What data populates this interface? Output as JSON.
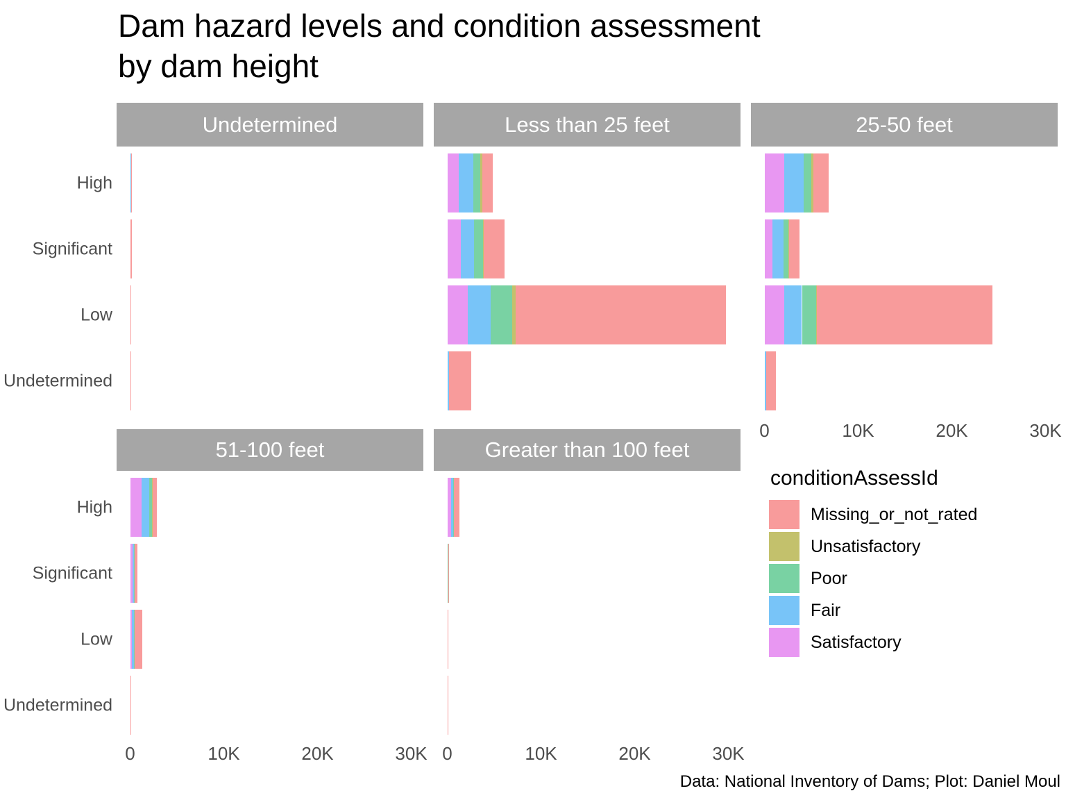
{
  "title": {
    "line1": "Dam hazard levels and condition assessment",
    "line2": "by dam height"
  },
  "caption": "Data: National Inventory of Dams; Plot: Daniel Moul",
  "legend": {
    "title": "conditionAssessId",
    "items": [
      {
        "label": "Missing_or_not_rated",
        "series": "Missing_or_not_rated",
        "color": "#F89B9B"
      },
      {
        "label": "Unsatisfactory",
        "series": "Unsatisfactory",
        "color": "#C3C16C"
      },
      {
        "label": "Poor",
        "series": "Poor",
        "color": "#79D2A3"
      },
      {
        "label": "Fair",
        "series": "Fair",
        "color": "#78C4F8"
      },
      {
        "label": "Satisfactory",
        "series": "Satisfactory",
        "color": "#E897F2"
      }
    ]
  },
  "axes": {
    "y_categories": [
      "High",
      "Significant",
      "Low",
      "Undetermined"
    ],
    "x_ticks": [
      {
        "label": "0",
        "value": 0
      },
      {
        "label": "10K",
        "value": 10000
      },
      {
        "label": "20K",
        "value": 20000
      },
      {
        "label": "30K",
        "value": 30000
      }
    ]
  },
  "chart_data": {
    "type": "bar",
    "orientation": "horizontal",
    "stacked": true,
    "facet_variable": "dam height",
    "categories": [
      "High",
      "Significant",
      "Low",
      "Undetermined"
    ],
    "stack_order_left_to_right": [
      "Satisfactory",
      "Fair",
      "Poor",
      "Unsatisfactory",
      "Missing_or_not_rated"
    ],
    "xlim": [
      0,
      31500
    ],
    "grid": "off",
    "legend_position": "right-middle",
    "facets": [
      {
        "label": "Undetermined",
        "bars": [
          {
            "category": "High",
            "Satisfactory": 30,
            "Fair": 100,
            "Poor": 10,
            "Unsatisfactory": 0,
            "Missing_or_not_rated": 60
          },
          {
            "category": "Significant",
            "Satisfactory": 10,
            "Fair": 10,
            "Poor": 0,
            "Unsatisfactory": 0,
            "Missing_or_not_rated": 140
          },
          {
            "category": "Low",
            "Satisfactory": 0,
            "Fair": 10,
            "Poor": 0,
            "Unsatisfactory": 0,
            "Missing_or_not_rated": 10
          },
          {
            "category": "Undetermined",
            "Satisfactory": 0,
            "Fair": 0,
            "Poor": 0,
            "Unsatisfactory": 0,
            "Missing_or_not_rated": 10
          }
        ]
      },
      {
        "label": "Less than 25 feet",
        "bars": [
          {
            "category": "High",
            "Satisfactory": 1200,
            "Fair": 1600,
            "Poor": 750,
            "Unsatisfactory": 200,
            "Missing_or_not_rated": 1100
          },
          {
            "category": "Significant",
            "Satisfactory": 1450,
            "Fair": 1400,
            "Poor": 1000,
            "Unsatisfactory": 50,
            "Missing_or_not_rated": 2200
          },
          {
            "category": "Low",
            "Satisfactory": 2200,
            "Fair": 2400,
            "Poor": 2300,
            "Unsatisfactory": 400,
            "Missing_or_not_rated": 22450
          },
          {
            "category": "Undetermined",
            "Satisfactory": 20,
            "Fair": 150,
            "Poor": 0,
            "Unsatisfactory": 0,
            "Missing_or_not_rated": 2400
          }
        ]
      },
      {
        "label": "25-50 feet",
        "bars": [
          {
            "category": "High",
            "Satisfactory": 2100,
            "Fair": 2100,
            "Poor": 820,
            "Unsatisfactory": 170,
            "Missing_or_not_rated": 1660
          },
          {
            "category": "Significant",
            "Satisfactory": 870,
            "Fair": 1160,
            "Poor": 520,
            "Unsatisfactory": 50,
            "Missing_or_not_rated": 1150
          },
          {
            "category": "Low",
            "Satisfactory": 2100,
            "Fair": 1900,
            "Poor": 1540,
            "Unsatisfactory": 70,
            "Missing_or_not_rated": 18700
          },
          {
            "category": "Undetermined",
            "Satisfactory": 30,
            "Fair": 170,
            "Poor": 0,
            "Unsatisfactory": 0,
            "Missing_or_not_rated": 1000
          }
        ]
      },
      {
        "label": "51-100 feet",
        "bars": [
          {
            "category": "High",
            "Satisfactory": 1200,
            "Fair": 870,
            "Poor": 250,
            "Unsatisfactory": 120,
            "Missing_or_not_rated": 430
          },
          {
            "category": "Significant",
            "Satisfactory": 270,
            "Fair": 170,
            "Poor": 30,
            "Unsatisfactory": 10,
            "Missing_or_not_rated": 300
          },
          {
            "category": "Low",
            "Satisfactory": 220,
            "Fair": 200,
            "Poor": 30,
            "Unsatisfactory": 10,
            "Missing_or_not_rated": 840
          },
          {
            "category": "Undetermined",
            "Satisfactory": 0,
            "Fair": 10,
            "Poor": 0,
            "Unsatisfactory": 0,
            "Missing_or_not_rated": 60
          }
        ]
      },
      {
        "label": "Greater than 100 feet",
        "bars": [
          {
            "category": "High",
            "Satisfactory": 400,
            "Fair": 250,
            "Poor": 40,
            "Unsatisfactory": 20,
            "Missing_or_not_rated": 570
          },
          {
            "category": "Significant",
            "Satisfactory": 30,
            "Fair": 40,
            "Poor": 10,
            "Unsatisfactory": 0,
            "Missing_or_not_rated": 50
          },
          {
            "category": "Low",
            "Satisfactory": 20,
            "Fair": 10,
            "Poor": 0,
            "Unsatisfactory": 0,
            "Missing_or_not_rated": 50
          },
          {
            "category": "Undetermined",
            "Satisfactory": 0,
            "Fair": 0,
            "Poor": 0,
            "Unsatisfactory": 0,
            "Missing_or_not_rated": 30
          }
        ]
      }
    ]
  }
}
